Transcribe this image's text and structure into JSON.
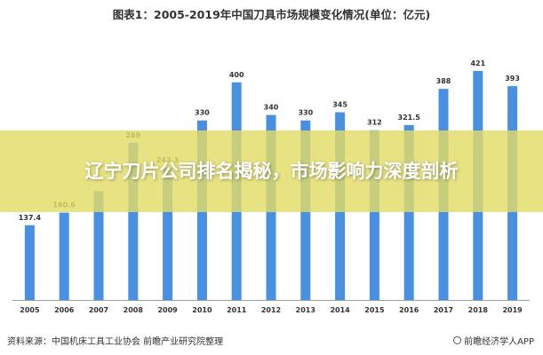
{
  "chart_data": {
    "type": "bar",
    "title": "图表1：2005-2019年中国刀具市场规模变化情况(单位：亿元)",
    "categories": [
      "2005",
      "2006",
      "2007",
      "2008",
      "2009",
      "2010",
      "2011",
      "2012",
      "2013",
      "2014",
      "2015",
      "2016",
      "2017",
      "2018",
      "2019"
    ],
    "values": [
      137.4,
      160.6,
      200,
      289,
      243.3,
      330,
      400,
      340,
      330,
      345,
      312,
      321.5,
      388,
      421,
      393
    ],
    "value_labels": [
      "137.4",
      "160.6",
      "",
      "289",
      "243.3",
      "330",
      "400",
      "340",
      "330",
      "345",
      "312",
      "321.5",
      "388",
      "421",
      "393"
    ],
    "ylim": [
      0,
      460
    ],
    "bar_color": "#4a90e2",
    "label_color": "#333333",
    "grid": false,
    "legend": "none"
  },
  "source_text": "资料来源：中国机床工具工业协会 前瞻产业研究院整理",
  "brand": {
    "icon": "brand-logo-icon",
    "label": "前瞻经济学人APP"
  },
  "overlay": {
    "headline": "辽宁刀片公司排名揭秘，市场影响力深度剖析",
    "color": "#e2dc66"
  }
}
